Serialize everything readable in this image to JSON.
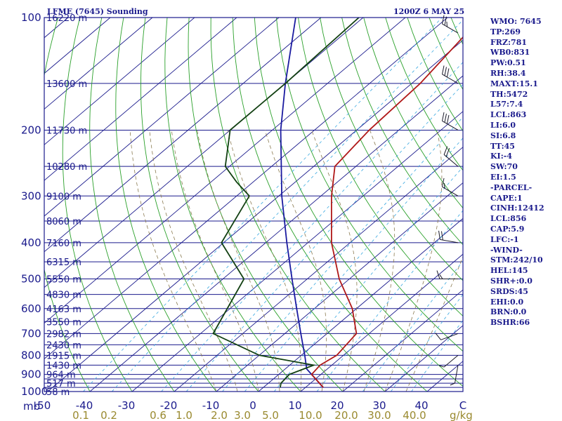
{
  "title": "LFME (7645) Sounding",
  "datetime": "1200Z  6 MAY 25",
  "colors": {
    "frame": "#1a1a8c",
    "isobar": "#1a1a8c",
    "isotherm": "#1a1a8c",
    "dry_adiabat": "#2aa02a",
    "moist_adiabat": "#8a7a50",
    "mixing_ratio": "#38a8e0",
    "temperature": "#b01818",
    "dewpoint": "#124012",
    "parcel": "#1a1aa0",
    "wind_barb": "#1a1a2a",
    "mixing_ratio_label": "#9a8a30"
  },
  "pressure_unit_label": "mb",
  "mixing_ratio_unit_label": "g/kg",
  "chart_data": {
    "type": "skew-t",
    "pressure_axis": {
      "range": [
        1000,
        100
      ],
      "scale": "log",
      "tick_labels": [
        "100",
        "200",
        "300",
        "400",
        "500",
        "600",
        "700",
        "800",
        "900",
        "1000"
      ]
    },
    "temperature_axis": {
      "range": [
        -50,
        50
      ],
      "unit_label": "C",
      "tick_labels": [
        "-50",
        "-40",
        "-30",
        "-20",
        "-10",
        "0",
        "10",
        "20",
        "30",
        "40"
      ]
    },
    "mixing_ratio_labels": [
      "0.1",
      "0.2",
      "0.6",
      "1.0",
      "2.0",
      "3.0",
      "5.0",
      "10.0",
      "20.0",
      "30.0",
      "40.0"
    ],
    "isobars": [
      100,
      150,
      200,
      250,
      300,
      350,
      400,
      450,
      500,
      550,
      600,
      650,
      700,
      750,
      800,
      850,
      900,
      925,
      950,
      975,
      1000
    ],
    "height_labels": [
      {
        "p": 100,
        "text": "16220 m"
      },
      {
        "p": 150,
        "text": "13600 m"
      },
      {
        "p": 200,
        "text": "11730 m"
      },
      {
        "p": 250,
        "text": "10280 m"
      },
      {
        "p": 300,
        "text": "9100 m"
      },
      {
        "p": 350,
        "text": "8060 m"
      },
      {
        "p": 400,
        "text": "7160 m"
      },
      {
        "p": 450,
        "text": "6315 m"
      },
      {
        "p": 500,
        "text": "5550 m"
      },
      {
        "p": 550,
        "text": "4830 m"
      },
      {
        "p": 600,
        "text": "4163 m"
      },
      {
        "p": 650,
        "text": "3550 m"
      },
      {
        "p": 700,
        "text": "2982 m"
      },
      {
        "p": 750,
        "text": "2430 m"
      },
      {
        "p": 800,
        "text": "1915 m"
      },
      {
        "p": 850,
        "text": "1430 m"
      },
      {
        "p": 900,
        "text": "964 m"
      },
      {
        "p": 950,
        "text": "517 m"
      },
      {
        "p": 1000,
        "text": "58 m"
      }
    ],
    "temperature_profile": [
      {
        "p": 975,
        "t": 14.2
      },
      {
        "p": 900,
        "t": 7.8
      },
      {
        "p": 850,
        "t": 7.2
      },
      {
        "p": 800,
        "t": 8.4
      },
      {
        "p": 700,
        "t": 7.0
      },
      {
        "p": 600,
        "t": -1.0
      },
      {
        "p": 500,
        "t": -12.4
      },
      {
        "p": 400,
        "t": -24.4
      },
      {
        "p": 300,
        "t": -37.5
      },
      {
        "p": 250,
        "t": -45.0
      },
      {
        "p": 200,
        "t": -47.0
      },
      {
        "p": 150,
        "t": -48.0
      },
      {
        "p": 100,
        "t": -52.0
      }
    ],
    "dewpoint_profile": [
      {
        "p": 975,
        "t": 4.0
      },
      {
        "p": 950,
        "t": 3.0
      },
      {
        "p": 900,
        "t": 2.5
      },
      {
        "p": 850,
        "t": 5.7
      },
      {
        "p": 800,
        "t": -10.0
      },
      {
        "p": 700,
        "t": -27.0
      },
      {
        "p": 500,
        "t": -35.0
      },
      {
        "p": 400,
        "t": -50.5
      },
      {
        "p": 300,
        "t": -57.0
      },
      {
        "p": 275,
        "t": -64.0
      },
      {
        "p": 250,
        "t": -71.0
      },
      {
        "p": 200,
        "t": -80.0
      },
      {
        "p": 150,
        "t": -80.0
      },
      {
        "p": 100,
        "t": -81.0
      }
    ],
    "parcel_profile": [
      {
        "p": 975,
        "t": 14.2
      },
      {
        "p": 870,
        "t": 5.1
      },
      {
        "p": 800,
        "t": 0.8
      },
      {
        "p": 700,
        "t": -6.2
      },
      {
        "p": 600,
        "t": -14.2
      },
      {
        "p": 500,
        "t": -23.6
      },
      {
        "p": 400,
        "t": -35.0
      },
      {
        "p": 300,
        "t": -49.3
      },
      {
        "p": 200,
        "t": -68.0
      },
      {
        "p": 150,
        "t": -80.0
      },
      {
        "p": 100,
        "t": -96.0
      }
    ],
    "wind_barbs": [
      {
        "p": 110,
        "dir": 300,
        "kt": 25
      },
      {
        "p": 150,
        "dir": 300,
        "kt": 30
      },
      {
        "p": 200,
        "dir": 300,
        "kt": 30
      },
      {
        "p": 250,
        "dir": 310,
        "kt": 20
      },
      {
        "p": 300,
        "dir": 300,
        "kt": 15
      },
      {
        "p": 400,
        "dir": 280,
        "kt": 20
      },
      {
        "p": 500,
        "dir": 270,
        "kt": 15
      },
      {
        "p": 700,
        "dir": 250,
        "kt": 10
      },
      {
        "p": 800,
        "dir": 230,
        "kt": 5
      },
      {
        "p": 850,
        "dir": 190,
        "kt": 5
      }
    ],
    "dry_adiabats_C": [
      -40,
      -30,
      -20,
      -10,
      0,
      10,
      20,
      30,
      40,
      50,
      60,
      70,
      80,
      90,
      100,
      110,
      120,
      130,
      140,
      150,
      160,
      170,
      180
    ],
    "moist_adiabats_C": [
      -10,
      -5,
      0,
      5,
      10,
      15,
      20,
      25,
      30,
      35
    ],
    "mixing_ratio_lines": [
      0.1,
      0.2,
      0.6,
      1.0,
      2.0,
      3.0,
      5.0,
      10.0,
      20.0,
      30.0,
      40.0
    ]
  },
  "indices": [
    "WMO: 7645",
    "TP:269",
    "FRZ:781",
    "WB0:831",
    "PW:0.51",
    "RH:38.4",
    "MAXT:15.1",
    "TH:5472",
    "L57:7.4",
    "LCL:863",
    "LI:6.0",
    "SI:6.8",
    "TT:45",
    "KI:-4",
    "SW:70",
    "EI:1.5",
    "-PARCEL-",
    "CAPE:1",
    "CINH:12412",
    "LCL:856",
    "CAP:5.9",
    "LFC:-1",
    "-WIND-",
    "STM:242/10",
    "HEL:145",
    "SHR+:0.0",
    "SRDS:45",
    "EHI:0.0",
    "BRN:0.0",
    "BSHR:66"
  ]
}
